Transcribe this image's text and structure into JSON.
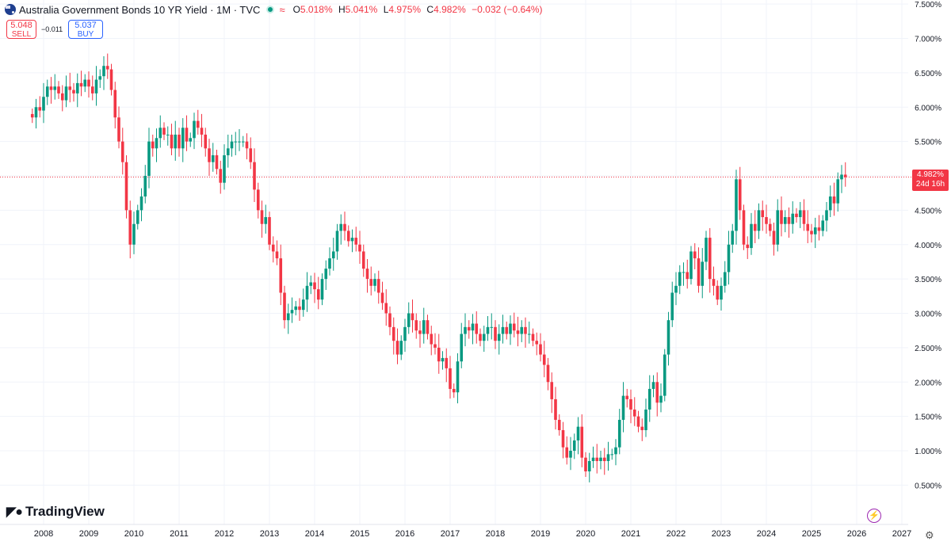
{
  "header": {
    "title": "Australia Government Bonds 10 YR Yield · 1M · TVC",
    "open_label": "O",
    "open_value": "5.018%",
    "high_label": "H",
    "high_value": "5.041%",
    "low_label": "L",
    "low_value": "4.975%",
    "close_label": "C",
    "close_value": "4.982%",
    "change_value": "−0.032 (−0.64%)"
  },
  "trade": {
    "sell_price": "5.048",
    "sell_label": "SELL",
    "spread": "−0.011",
    "buy_price": "5.037",
    "buy_label": "BUY"
  },
  "branding": {
    "logo_text": "TradingView"
  },
  "price_tag": {
    "value": "4.982%",
    "countdown": "24d 16h"
  },
  "colors": {
    "up": "#089981",
    "down": "#f23645",
    "grid": "#f0f3fa",
    "text": "#131722"
  },
  "chart_data": {
    "type": "candlestick",
    "title": "Australia Government Bonds 10 YR Yield",
    "interval": "1M",
    "y_ticks": [
      "7.500%",
      "7.000%",
      "6.500%",
      "6.000%",
      "5.500%",
      "5.000%",
      "4.500%",
      "4.000%",
      "3.500%",
      "3.000%",
      "2.500%",
      "2.000%",
      "1.500%",
      "1.000%",
      "0.500%"
    ],
    "y_tick_values": [
      7.5,
      7.0,
      6.5,
      6.0,
      5.5,
      5.0,
      4.5,
      4.0,
      3.5,
      3.0,
      2.5,
      2.0,
      1.5,
      1.0,
      0.5
    ],
    "x_ticks": [
      "2008",
      "2009",
      "2010",
      "2011",
      "2012",
      "2013",
      "2014",
      "2015",
      "2016",
      "2017",
      "2018",
      "2019",
      "2020",
      "2021",
      "2022",
      "2023",
      "2024",
      "2025",
      "2026",
      "2027"
    ],
    "x_tick_years": [
      2008,
      2009,
      2010,
      2011,
      2012,
      2013,
      2014,
      2015,
      2016,
      2017,
      2018,
      2019,
      2020,
      2021,
      2022,
      2023,
      2024,
      2025,
      2026,
      2027
    ],
    "ylim": [
      0.25,
      7.55
    ],
    "xlim": [
      2007.75,
      2027.3
    ],
    "start_year": 2007.75,
    "last_value": 4.982,
    "closes": [
      5.85,
      6.0,
      5.95,
      6.15,
      6.3,
      6.25,
      6.3,
      6.2,
      6.1,
      6.3,
      6.25,
      6.2,
      6.35,
      6.3,
      6.4,
      6.3,
      6.2,
      6.4,
      6.45,
      6.6,
      6.55,
      6.25,
      5.85,
      5.5,
      5.2,
      4.5,
      4.0,
      4.3,
      4.5,
      4.7,
      5.0,
      5.5,
      5.4,
      5.55,
      5.7,
      5.6,
      5.6,
      5.4,
      5.6,
      5.4,
      5.7,
      5.5,
      5.55,
      5.8,
      5.7,
      5.6,
      5.4,
      5.2,
      5.3,
      5.1,
      4.9,
      5.3,
      5.4,
      5.5,
      5.5,
      5.5,
      5.5,
      5.4,
      5.2,
      4.8,
      4.5,
      4.3,
      4.4,
      4.0,
      3.9,
      3.8,
      3.3,
      2.9,
      3.0,
      3.05,
      3.1,
      3.05,
      3.2,
      3.4,
      3.45,
      3.35,
      3.2,
      3.5,
      3.65,
      3.8,
      3.9,
      4.2,
      4.3,
      4.2,
      4.05,
      4.1,
      4.0,
      3.9,
      3.65,
      3.5,
      3.4,
      3.5,
      3.3,
      3.15,
      3.0,
      2.8,
      2.6,
      2.4,
      2.6,
      2.8,
      3.0,
      2.9,
      2.75,
      2.7,
      2.9,
      2.7,
      2.55,
      2.5,
      2.3,
      2.35,
      2.2,
      1.9,
      1.85,
      2.3,
      2.7,
      2.8,
      2.75,
      2.85,
      2.7,
      2.6,
      2.7,
      2.8,
      2.8,
      2.6,
      2.7,
      2.8,
      2.7,
      2.85,
      2.75,
      2.7,
      2.8,
      2.7,
      2.7,
      2.6,
      2.55,
      2.4,
      2.25,
      2.0,
      1.75,
      1.45,
      1.3,
      1.05,
      0.9,
      1.0,
      1.15,
      1.35,
      0.9,
      0.7,
      0.85,
      0.9,
      0.85,
      0.9,
      0.85,
      0.95,
      0.95,
      1.05,
      1.45,
      1.8,
      1.75,
      1.6,
      1.5,
      1.35,
      1.3,
      1.6,
      1.9,
      2.0,
      1.7,
      1.8,
      2.4,
      2.9,
      3.3,
      3.4,
      3.6,
      3.6,
      3.5,
      3.9,
      3.8,
      3.4,
      3.75,
      4.1,
      3.5,
      3.4,
      3.2,
      3.4,
      3.6,
      4.0,
      4.2,
      4.95,
      4.5,
      4.0,
      3.95,
      4.3,
      4.2,
      4.5,
      4.4,
      4.3,
      4.2,
      4.0,
      4.5,
      4.3,
      4.4,
      4.3,
      4.45,
      4.4,
      4.5,
      4.3,
      4.2,
      4.15,
      4.25,
      4.2,
      4.35,
      4.5,
      4.7,
      4.6,
      4.95,
      5.018,
      4.982
    ]
  }
}
